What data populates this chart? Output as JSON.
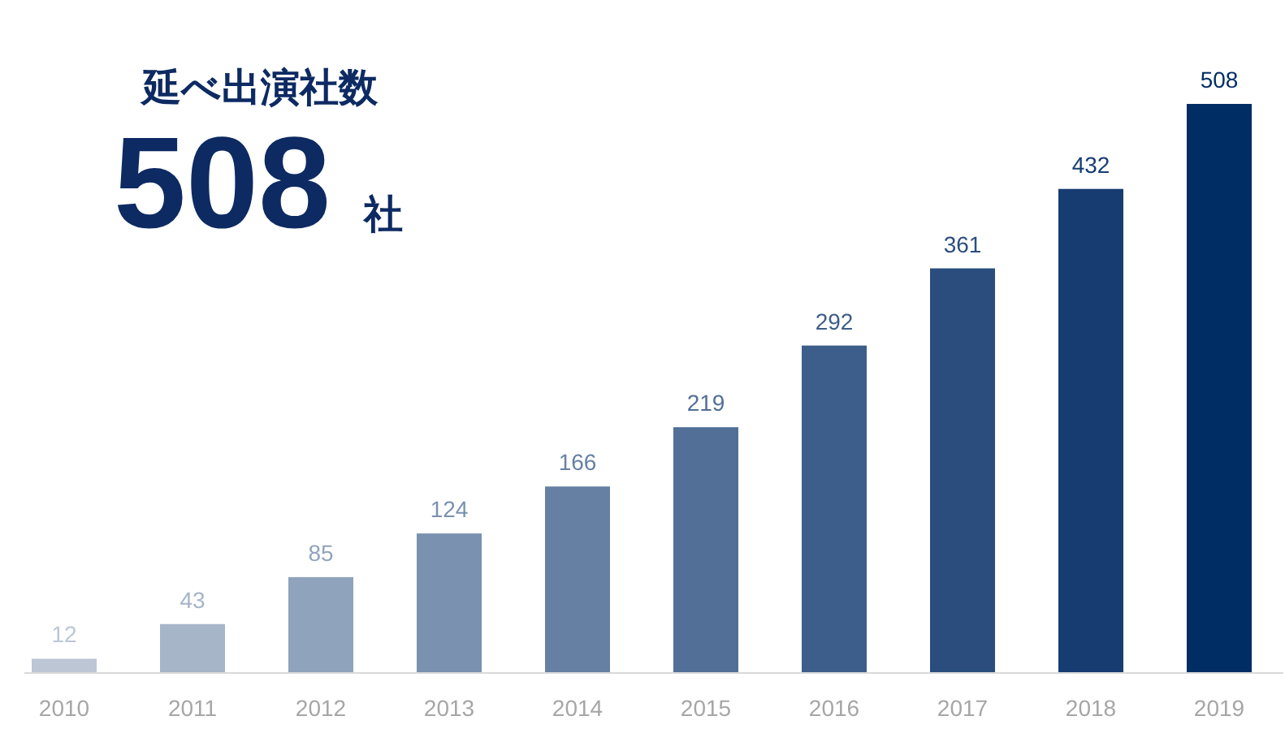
{
  "chart_data": {
    "type": "bar",
    "title": "延べ出演社数",
    "annotations": [
      "508",
      "社"
    ],
    "categories": [
      "2010",
      "2011",
      "2012",
      "2013",
      "2014",
      "2015",
      "2016",
      "2017",
      "2018",
      "2019"
    ],
    "values": [
      12,
      43,
      85,
      124,
      166,
      219,
      292,
      361,
      432,
      508
    ],
    "colors": [
      "#bcc6d4",
      "#a6b5c8",
      "#90a3bc",
      "#7a91b0",
      "#6680a3",
      "#516f97",
      "#3d5e8a",
      "#2a4d7e",
      "#163c72",
      "#002d64"
    ],
    "data_labels": true
  }
}
